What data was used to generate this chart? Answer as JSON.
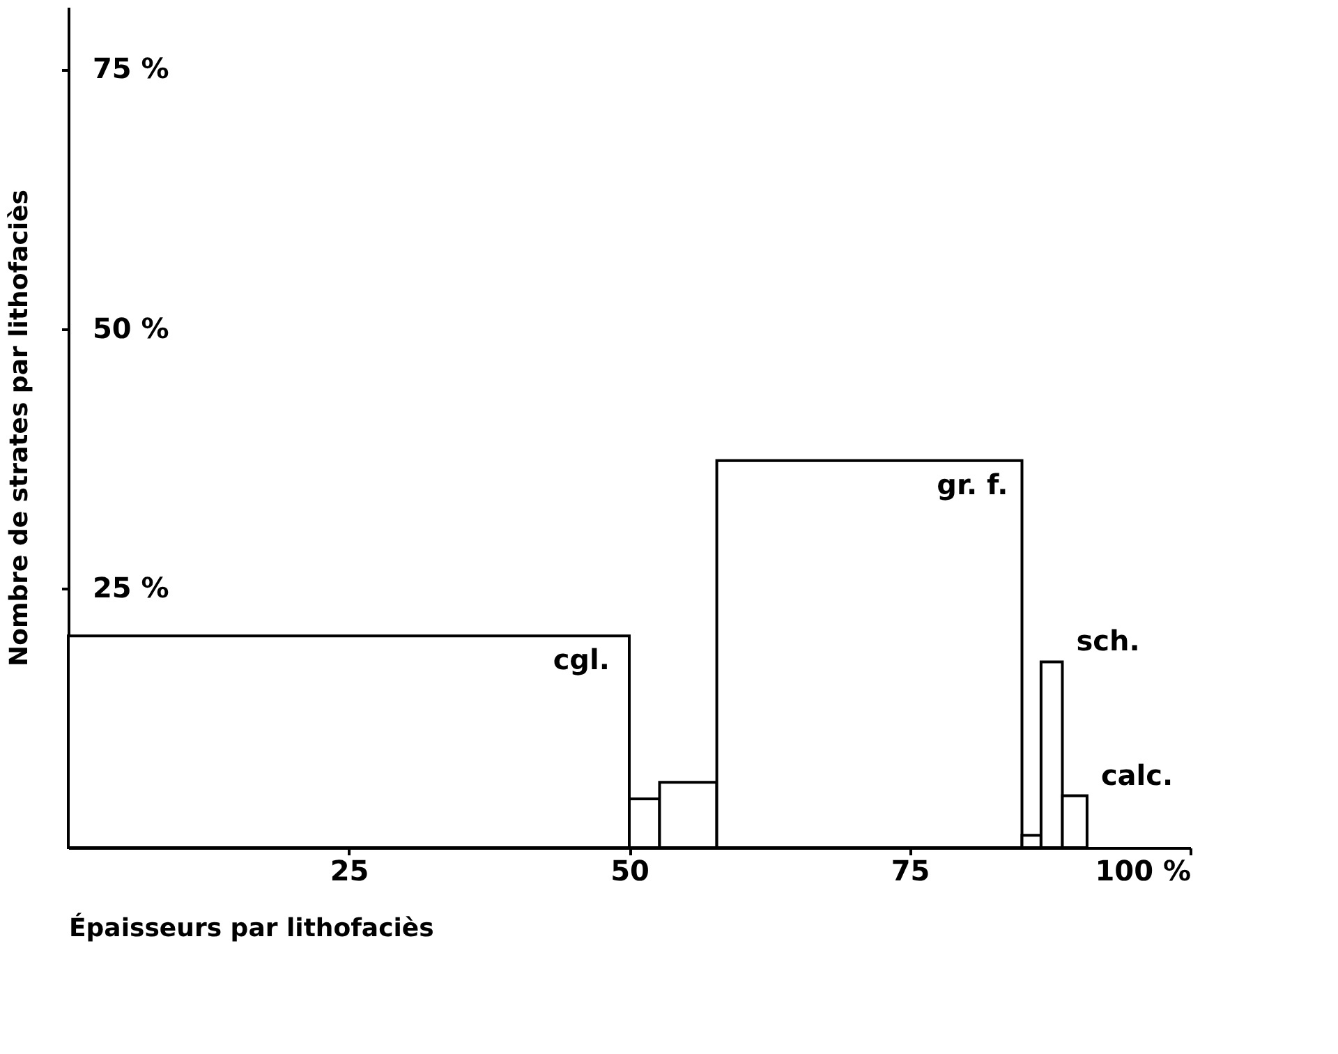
{
  "chart_data": {
    "type": "histogram",
    "xlabel": "Épaisseurs par lithofaciès",
    "ylabel": "Nombre de strates par lithofaciès",
    "bins": [
      0,
      50,
      52.7,
      57.8,
      85,
      86.7,
      88.6,
      90.8
    ],
    "values": [
      20.4,
      4.7,
      6.3,
      37.3,
      1.2,
      17.9,
      5.0
    ],
    "color": "#ffffff",
    "xlim": [
      0,
      100
    ],
    "xticks": [
      25,
      50,
      75,
      {
        "value": 100,
        "label": "100 %"
      }
    ],
    "ylim": [
      0,
      81
    ],
    "yticks": [
      {
        "value": 25,
        "label": "25 %"
      },
      {
        "value": 50,
        "label": "50 %"
      },
      {
        "value": 75,
        "label": "75 %"
      }
    ],
    "grid": false,
    "annotations": [
      {
        "text": "cgl.",
        "x": 49,
        "y": 20.4
      },
      {
        "text": "gr. f.",
        "x": 84.5,
        "y": 37.3
      },
      {
        "text": "sch.",
        "x": 88.6,
        "y": 17.9
      },
      {
        "text": "calc.",
        "x": 90.8,
        "y": 5.0
      }
    ]
  }
}
